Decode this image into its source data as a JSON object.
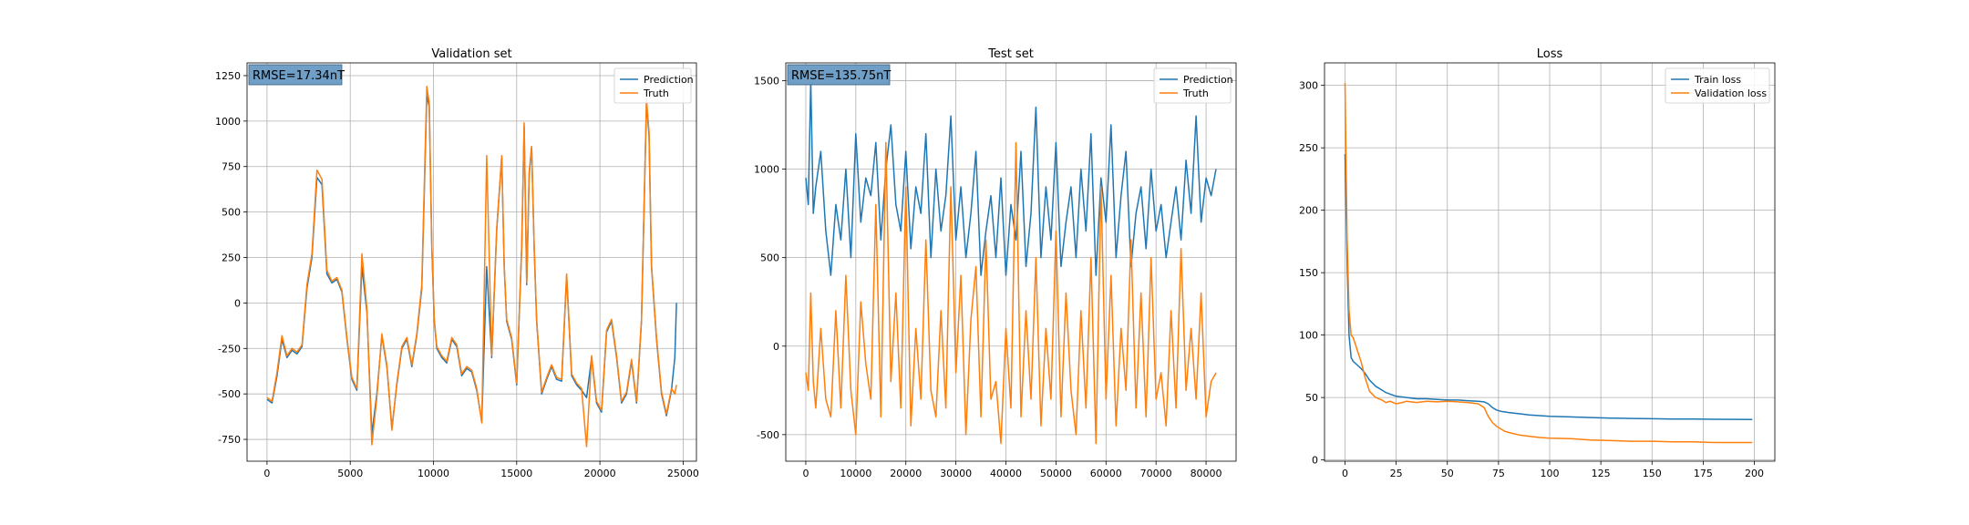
{
  "chart_data": [
    {
      "type": "line",
      "title": "Validation set",
      "xlabel": "",
      "ylabel": "",
      "xlim": [
        -1200,
        25800
      ],
      "ylim": [
        -870,
        1320
      ],
      "xticks": [
        0,
        5000,
        10000,
        15000,
        20000,
        25000
      ],
      "yticks": [
        -750,
        -500,
        -250,
        0,
        250,
        500,
        750,
        1000,
        1250
      ],
      "grid": true,
      "legend": "top-right",
      "annotation": "RMSE=17.34nT",
      "series": [
        {
          "name": "Prediction",
          "color": "#1f77b4",
          "x": [
            0,
            300,
            600,
            900,
            1200,
            1500,
            1800,
            2100,
            2400,
            2700,
            3000,
            3300,
            3600,
            3900,
            4200,
            4500,
            4800,
            5100,
            5400,
            5700,
            6000,
            6300,
            6600,
            6900,
            7200,
            7500,
            7800,
            8100,
            8400,
            8700,
            9000,
            9300,
            9600,
            9750,
            9900,
            10050,
            10200,
            10500,
            10800,
            11100,
            11400,
            11700,
            12000,
            12300,
            12600,
            12900,
            13200,
            13500,
            13800,
            14100,
            14250,
            14400,
            14700,
            15000,
            15300,
            15450,
            15600,
            15750,
            15900,
            16050,
            16200,
            16500,
            16800,
            17100,
            17400,
            17700,
            18000,
            18300,
            18600,
            18900,
            19200,
            19500,
            19800,
            20100,
            20400,
            20700,
            21000,
            21300,
            21600,
            21900,
            22200,
            22500,
            22800,
            22950,
            23100,
            23400,
            23700,
            24000,
            24300,
            24500,
            24600
          ],
          "y": [
            -530,
            -550,
            -400,
            -200,
            -300,
            -260,
            -280,
            -240,
            80,
            250,
            690,
            650,
            160,
            110,
            130,
            60,
            -200,
            -420,
            -480,
            200,
            -50,
            -720,
            -500,
            -180,
            -350,
            -690,
            -450,
            -250,
            -200,
            -350,
            -180,
            80,
            1140,
            1080,
            300,
            -100,
            -250,
            -300,
            -330,
            -200,
            -240,
            -400,
            -360,
            -380,
            -480,
            -650,
            200,
            -300,
            400,
            800,
            200,
            -100,
            -200,
            -450,
            300,
            970,
            100,
            700,
            860,
            300,
            -100,
            -500,
            -420,
            -350,
            -420,
            -430,
            150,
            -400,
            -450,
            -480,
            -520,
            -300,
            -550,
            -600,
            -160,
            -100,
            -300,
            -550,
            -500,
            -320,
            -550,
            -100,
            1100,
            920,
            200,
            -200,
            -500,
            -620,
            -480,
            -300,
            0
          ]
        },
        {
          "name": "Truth",
          "color": "#ff7f0e",
          "x": [
            0,
            300,
            600,
            900,
            1200,
            1500,
            1800,
            2100,
            2400,
            2700,
            3000,
            3300,
            3600,
            3900,
            4200,
            4500,
            4800,
            5100,
            5400,
            5700,
            6000,
            6300,
            6600,
            6900,
            7200,
            7500,
            7800,
            8100,
            8400,
            8700,
            9000,
            9300,
            9600,
            9750,
            9900,
            10050,
            10200,
            10500,
            10800,
            11100,
            11400,
            11700,
            12000,
            12300,
            12600,
            12900,
            13200,
            13500,
            13800,
            14100,
            14250,
            14400,
            14700,
            15000,
            15300,
            15450,
            15600,
            15750,
            15900,
            16050,
            16200,
            16500,
            16800,
            17100,
            17400,
            17700,
            18000,
            18300,
            18600,
            18900,
            19200,
            19500,
            19800,
            20100,
            20400,
            20700,
            21000,
            21300,
            21600,
            21900,
            22200,
            22500,
            22800,
            22950,
            23100,
            23400,
            23700,
            24000,
            24300,
            24500,
            24600
          ],
          "y": [
            -520,
            -540,
            -380,
            -180,
            -290,
            -250,
            -270,
            -230,
            100,
            270,
            730,
            680,
            180,
            120,
            140,
            70,
            -190,
            -410,
            -470,
            270,
            -30,
            -780,
            -520,
            -170,
            -340,
            -700,
            -440,
            -240,
            -190,
            -340,
            -170,
            100,
            1190,
            1100,
            320,
            -90,
            -240,
            -290,
            -320,
            -190,
            -230,
            -390,
            -350,
            -370,
            -470,
            -660,
            810,
            -290,
            410,
            810,
            210,
            -90,
            -190,
            -440,
            310,
            990,
            110,
            720,
            860,
            310,
            -90,
            -490,
            -410,
            -340,
            -410,
            -420,
            160,
            -390,
            -440,
            -470,
            -790,
            -290,
            -540,
            -590,
            -150,
            -90,
            -290,
            -540,
            -490,
            -310,
            -540,
            -90,
            1120,
            940,
            210,
            -190,
            -490,
            -610,
            -470,
            -500,
            -450
          ]
        }
      ]
    },
    {
      "type": "line",
      "title": "Test set",
      "xlabel": "",
      "ylabel": "",
      "xlim": [
        -4000,
        86000
      ],
      "ylim": [
        -650,
        1600
      ],
      "xticks": [
        0,
        10000,
        20000,
        30000,
        40000,
        50000,
        60000,
        70000,
        80000
      ],
      "yticks": [
        -500,
        0,
        500,
        1000,
        1500
      ],
      "grid": true,
      "legend": "top-right",
      "annotation": "RMSE=135.75nT",
      "series": [
        {
          "name": "Prediction",
          "color": "#1f77b4",
          "x": [
            0,
            500,
            1000,
            1500,
            2000,
            3000,
            4000,
            5000,
            6000,
            7000,
            8000,
            9000,
            10000,
            11000,
            12000,
            13000,
            14000,
            15000,
            16000,
            17000,
            18000,
            19000,
            20000,
            21000,
            22000,
            23000,
            24000,
            25000,
            26000,
            27000,
            28000,
            29000,
            30000,
            31000,
            32000,
            33000,
            34000,
            35000,
            36000,
            37000,
            38000,
            39000,
            40000,
            41000,
            42000,
            43000,
            44000,
            45000,
            46000,
            47000,
            48000,
            49000,
            50000,
            51000,
            52000,
            53000,
            54000,
            55000,
            56000,
            57000,
            58000,
            59000,
            60000,
            61000,
            62000,
            63000,
            64000,
            65000,
            66000,
            67000,
            68000,
            69000,
            70000,
            71000,
            72000,
            73000,
            74000,
            75000,
            76000,
            77000,
            78000,
            79000,
            80000,
            81000,
            82000
          ],
          "y": [
            950,
            800,
            1500,
            750,
            900,
            1100,
            650,
            400,
            800,
            600,
            1000,
            500,
            1200,
            700,
            950,
            850,
            1150,
            600,
            1000,
            1250,
            800,
            650,
            1100,
            550,
            900,
            750,
            1200,
            500,
            1000,
            650,
            850,
            1300,
            600,
            900,
            500,
            750,
            1100,
            400,
            650,
            850,
            500,
            950,
            400,
            800,
            600,
            1100,
            450,
            750,
            1350,
            500,
            900,
            600,
            1150,
            450,
            700,
            900,
            500,
            1000,
            650,
            1200,
            400,
            950,
            700,
            1250,
            500,
            850,
            1100,
            450,
            750,
            900,
            550,
            1000,
            650,
            800,
            500,
            700,
            900,
            600,
            1050,
            750,
            1300,
            700,
            950,
            850,
            1000
          ]
        },
        {
          "name": "Truth",
          "color": "#ff7f0e",
          "x": [
            0,
            500,
            1000,
            1500,
            2000,
            3000,
            4000,
            5000,
            6000,
            7000,
            8000,
            9000,
            10000,
            11000,
            12000,
            13000,
            14000,
            15000,
            16000,
            17000,
            18000,
            19000,
            20000,
            21000,
            22000,
            23000,
            24000,
            25000,
            26000,
            27000,
            28000,
            29000,
            30000,
            31000,
            32000,
            33000,
            34000,
            35000,
            36000,
            37000,
            38000,
            39000,
            40000,
            41000,
            42000,
            43000,
            44000,
            45000,
            46000,
            47000,
            48000,
            49000,
            50000,
            51000,
            52000,
            53000,
            54000,
            55000,
            56000,
            57000,
            58000,
            59000,
            60000,
            61000,
            62000,
            63000,
            64000,
            65000,
            66000,
            67000,
            68000,
            69000,
            70000,
            71000,
            72000,
            73000,
            74000,
            75000,
            76000,
            77000,
            78000,
            79000,
            80000,
            81000,
            82000
          ],
          "y": [
            -150,
            -250,
            300,
            -200,
            -350,
            100,
            -300,
            -400,
            200,
            -350,
            400,
            -250,
            -500,
            250,
            -100,
            -300,
            800,
            -400,
            1150,
            -200,
            300,
            -350,
            900,
            -450,
            100,
            -300,
            600,
            -250,
            -400,
            200,
            -350,
            900,
            -150,
            400,
            -500,
            150,
            450,
            -400,
            600,
            -300,
            -200,
            -550,
            100,
            -350,
            1150,
            -400,
            200,
            -300,
            500,
            -450,
            100,
            -300,
            650,
            -400,
            300,
            -250,
            -500,
            200,
            -350,
            500,
            -550,
            900,
            -300,
            400,
            -450,
            100,
            -250,
            600,
            -350,
            300,
            -400,
            500,
            -300,
            -150,
            -450,
            200,
            -350,
            550,
            -250,
            100,
            -300,
            300,
            -400,
            -200,
            -150
          ]
        }
      ]
    },
    {
      "type": "line",
      "title": "Loss",
      "xlabel": "",
      "ylabel": "",
      "xlim": [
        -10,
        210
      ],
      "ylim": [
        -1,
        318
      ],
      "xticks": [
        0,
        25,
        50,
        75,
        100,
        125,
        150,
        175,
        200
      ],
      "yticks": [
        0,
        50,
        100,
        150,
        200,
        250,
        300
      ],
      "grid": true,
      "legend": "top-right",
      "annotation": "",
      "series": [
        {
          "name": "Train loss",
          "color": "#1f77b4",
          "x": [
            0,
            1,
            2,
            3,
            4,
            6,
            8,
            10,
            12,
            15,
            18,
            20,
            25,
            30,
            35,
            40,
            45,
            50,
            55,
            60,
            65,
            68,
            70,
            72,
            74,
            76,
            80,
            85,
            90,
            95,
            100,
            110,
            120,
            130,
            140,
            150,
            160,
            170,
            180,
            190,
            199
          ],
          "y": [
            245,
            160,
            100,
            82,
            79,
            76,
            73,
            69,
            64,
            59,
            56,
            54,
            51,
            50,
            49,
            49,
            48.5,
            48,
            48,
            47.5,
            47,
            46.5,
            45,
            42,
            40,
            39,
            38,
            37,
            36,
            35.5,
            35,
            34.5,
            34,
            33.5,
            33.2,
            33,
            32.8,
            32.7,
            32.6,
            32.5,
            32.4
          ]
        },
        {
          "name": "Validation loss",
          "color": "#ff7f0e",
          "x": [
            0,
            1,
            2,
            3,
            4,
            5,
            6,
            8,
            10,
            12,
            15,
            18,
            20,
            22,
            25,
            28,
            30,
            35,
            40,
            45,
            50,
            55,
            60,
            65,
            68,
            70,
            72,
            74,
            76,
            78,
            80,
            85,
            90,
            95,
            100,
            110,
            120,
            130,
            140,
            150,
            160,
            170,
            180,
            190,
            199
          ],
          "y": [
            302,
            180,
            120,
            100,
            98,
            93,
            88,
            78,
            65,
            55,
            50,
            48,
            46,
            47,
            45,
            46,
            47,
            46,
            47,
            46.5,
            47,
            46.5,
            46,
            45,
            42,
            35,
            30,
            27,
            25,
            23,
            22,
            20,
            19,
            18,
            17.5,
            17,
            16,
            15.5,
            15,
            15,
            14.5,
            14.5,
            14,
            14,
            14
          ]
        }
      ]
    }
  ]
}
